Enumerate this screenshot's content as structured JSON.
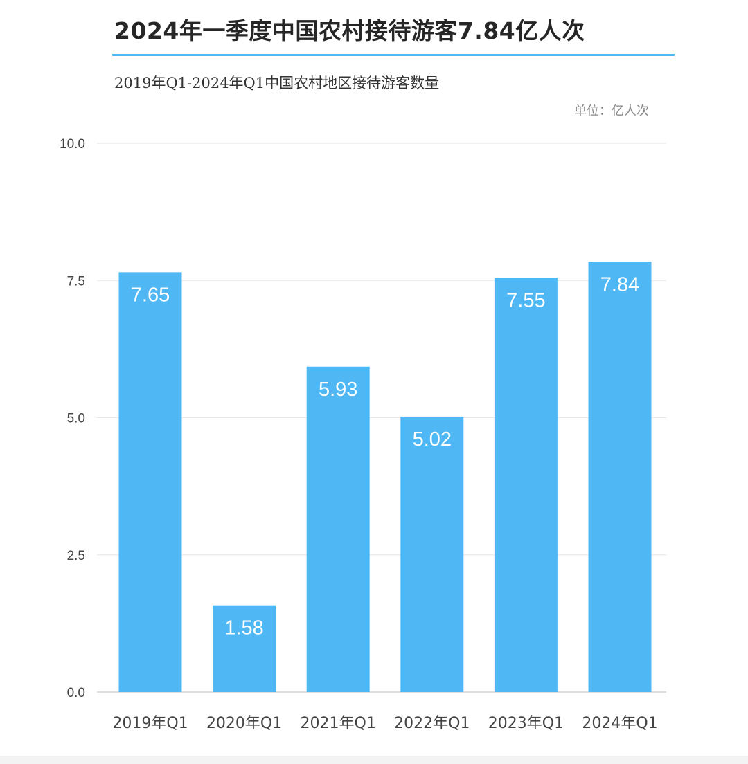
{
  "header": {
    "title": "2024年一季度中国农村接待游客7.84亿人次",
    "subtitle": "2019年Q1-2024年Q1中国农村地区接待游客数量",
    "unit": "单位：亿人次"
  },
  "colors": {
    "bar": "#4fb8f4",
    "accent_rule": "#4fb8ee",
    "grid": "#e6e6e6",
    "axis_text": "#444444",
    "bar_label": "#ffffff"
  },
  "chart_data": {
    "type": "bar",
    "title": "",
    "xlabel": "",
    "ylabel": "",
    "categories": [
      "2019年Q1",
      "2020年Q1",
      "2021年Q1",
      "2022年Q1",
      "2023年Q1",
      "2024年Q1"
    ],
    "values": [
      7.65,
      1.58,
      5.93,
      5.02,
      7.55,
      7.84
    ],
    "value_labels": [
      "7.65",
      "1.58",
      "5.93",
      "5.02",
      "7.55",
      "7.84"
    ],
    "ylim": [
      0,
      10
    ],
    "yticks": [
      0,
      2.5,
      5,
      7.5,
      10
    ],
    "ytick_labels": [
      "0.0",
      "2.5",
      "5.0",
      "7.5",
      "10.0"
    ],
    "grid": true,
    "legend": "none"
  }
}
